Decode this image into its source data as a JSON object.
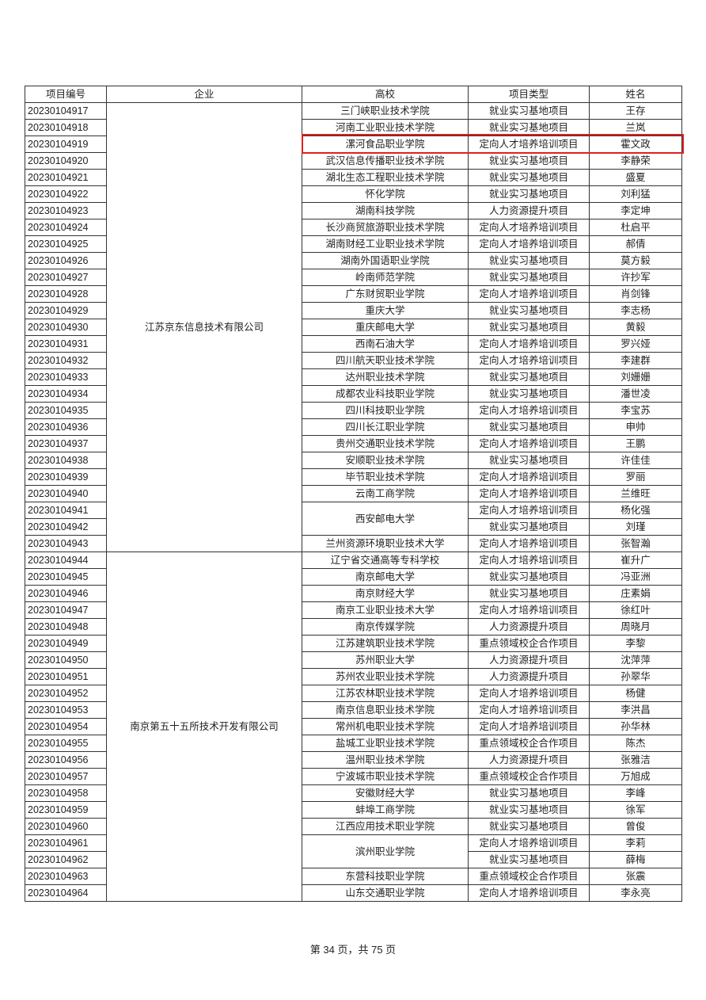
{
  "header": {
    "id": "项目编号",
    "company": "企业",
    "school": "高校",
    "type": "项目类型",
    "name": "姓名"
  },
  "highlighted_id": "20230104919",
  "highlight_color": "#e02020",
  "companies": [
    {
      "name": "江苏京东信息技术有限公司",
      "schools": [
        {
          "name": "三门峡职业技术学院",
          "entries": [
            {
              "id": "20230104917",
              "type": "就业实习基地项目",
              "name": "王存"
            }
          ]
        },
        {
          "name": "河南工业职业技术学院",
          "entries": [
            {
              "id": "20230104918",
              "type": "就业实习基地项目",
              "name": "兰岚"
            }
          ]
        },
        {
          "name": "漯河食品职业学院",
          "entries": [
            {
              "id": "20230104919",
              "type": "定向人才培养培训项目",
              "name": "霍文政"
            }
          ]
        },
        {
          "name": "武汉信息传播职业技术学院",
          "entries": [
            {
              "id": "20230104920",
              "type": "就业实习基地项目",
              "name": "李静荣"
            }
          ]
        },
        {
          "name": "湖北生态工程职业技术学院",
          "entries": [
            {
              "id": "20230104921",
              "type": "就业实习基地项目",
              "name": "盛夏"
            }
          ]
        },
        {
          "name": "怀化学院",
          "entries": [
            {
              "id": "20230104922",
              "type": "就业实习基地项目",
              "name": "刘利猛"
            }
          ]
        },
        {
          "name": "湖南科技学院",
          "entries": [
            {
              "id": "20230104923",
              "type": "人力资源提升项目",
              "name": "李定坤"
            }
          ]
        },
        {
          "name": "长沙商贸旅游职业技术学院",
          "entries": [
            {
              "id": "20230104924",
              "type": "定向人才培养培训项目",
              "name": "杜启平"
            }
          ]
        },
        {
          "name": "湖南财经工业职业技术学院",
          "entries": [
            {
              "id": "20230104925",
              "type": "定向人才培养培训项目",
              "name": "郝倩"
            }
          ]
        },
        {
          "name": "湖南外国语职业学院",
          "entries": [
            {
              "id": "20230104926",
              "type": "就业实习基地项目",
              "name": "莫方毅"
            }
          ]
        },
        {
          "name": "岭南师范学院",
          "entries": [
            {
              "id": "20230104927",
              "type": "就业实习基地项目",
              "name": "许抄军"
            }
          ]
        },
        {
          "name": "广东财贸职业学院",
          "entries": [
            {
              "id": "20230104928",
              "type": "定向人才培养培训项目",
              "name": "肖剑锋"
            }
          ]
        },
        {
          "name": "重庆大学",
          "entries": [
            {
              "id": "20230104929",
              "type": "就业实习基地项目",
              "name": "李志杨"
            }
          ]
        },
        {
          "name": "重庆邮电大学",
          "entries": [
            {
              "id": "20230104930",
              "type": "就业实习基地项目",
              "name": "黄毅"
            }
          ]
        },
        {
          "name": "西南石油大学",
          "entries": [
            {
              "id": "20230104931",
              "type": "定向人才培养培训项目",
              "name": "罗兴娅"
            }
          ]
        },
        {
          "name": "四川航天职业技术学院",
          "entries": [
            {
              "id": "20230104932",
              "type": "定向人才培养培训项目",
              "name": "李建群"
            }
          ]
        },
        {
          "name": "达州职业技术学院",
          "entries": [
            {
              "id": "20230104933",
              "type": "就业实习基地项目",
              "name": "刘姗姗"
            }
          ]
        },
        {
          "name": "成都农业科技职业学院",
          "entries": [
            {
              "id": "20230104934",
              "type": "就业实习基地项目",
              "name": "潘世凌"
            }
          ]
        },
        {
          "name": "四川科技职业学院",
          "entries": [
            {
              "id": "20230104935",
              "type": "定向人才培养培训项目",
              "name": "李宝苏"
            }
          ]
        },
        {
          "name": "四川长江职业学院",
          "entries": [
            {
              "id": "20230104936",
              "type": "就业实习基地项目",
              "name": "申帅"
            }
          ]
        },
        {
          "name": "贵州交通职业技术学院",
          "entries": [
            {
              "id": "20230104937",
              "type": "定向人才培养培训项目",
              "name": "王鹏"
            }
          ]
        },
        {
          "name": "安顺职业技术学院",
          "entries": [
            {
              "id": "20230104938",
              "type": "就业实习基地项目",
              "name": "许佳佳"
            }
          ]
        },
        {
          "name": "毕节职业技术学院",
          "entries": [
            {
              "id": "20230104939",
              "type": "定向人才培养培训项目",
              "name": "罗丽"
            }
          ]
        },
        {
          "name": "云南工商学院",
          "entries": [
            {
              "id": "20230104940",
              "type": "定向人才培养培训项目",
              "name": "兰维旺"
            }
          ]
        },
        {
          "name": "西安邮电大学",
          "entries": [
            {
              "id": "20230104941",
              "type": "定向人才培养培训项目",
              "name": "杨化强"
            },
            {
              "id": "20230104942",
              "type": "就业实习基地项目",
              "name": "刘瑾"
            }
          ]
        },
        {
          "name": "兰州资源环境职业技术大学",
          "entries": [
            {
              "id": "20230104943",
              "type": "定向人才培养培训项目",
              "name": "张智瀚"
            }
          ]
        }
      ]
    },
    {
      "name": "南京第五十五所技术开发有限公司",
      "schools": [
        {
          "name": "辽宁省交通高等专科学校",
          "entries": [
            {
              "id": "20230104944",
              "type": "定向人才培养培训项目",
              "name": "崔升广"
            }
          ]
        },
        {
          "name": "南京邮电大学",
          "entries": [
            {
              "id": "20230104945",
              "type": "就业实习基地项目",
              "name": "冯亚洲"
            }
          ]
        },
        {
          "name": "南京财经大学",
          "entries": [
            {
              "id": "20230104946",
              "type": "就业实习基地项目",
              "name": "庄素娟"
            }
          ]
        },
        {
          "name": "南京工业职业技术大学",
          "entries": [
            {
              "id": "20230104947",
              "type": "定向人才培养培训项目",
              "name": "徐红叶"
            }
          ]
        },
        {
          "name": "南京传媒学院",
          "entries": [
            {
              "id": "20230104948",
              "type": "人力资源提升项目",
              "name": "周晓月"
            }
          ]
        },
        {
          "name": "江苏建筑职业技术学院",
          "entries": [
            {
              "id": "20230104949",
              "type": "重点领域校企合作项目",
              "name": "李黎"
            }
          ]
        },
        {
          "name": "苏州职业大学",
          "entries": [
            {
              "id": "20230104950",
              "type": "人力资源提升项目",
              "name": "沈萍萍"
            }
          ]
        },
        {
          "name": "苏州农业职业技术学院",
          "entries": [
            {
              "id": "20230104951",
              "type": "人力资源提升项目",
              "name": "孙翠华"
            }
          ]
        },
        {
          "name": "江苏农林职业技术学院",
          "entries": [
            {
              "id": "20230104952",
              "type": "定向人才培养培训项目",
              "name": "杨健"
            }
          ]
        },
        {
          "name": "南京信息职业技术学院",
          "entries": [
            {
              "id": "20230104953",
              "type": "定向人才培养培训项目",
              "name": "李洪昌"
            }
          ]
        },
        {
          "name": "常州机电职业技术学院",
          "entries": [
            {
              "id": "20230104954",
              "type": "定向人才培养培训项目",
              "name": "孙华林"
            }
          ]
        },
        {
          "name": "盐城工业职业技术学院",
          "entries": [
            {
              "id": "20230104955",
              "type": "重点领域校企合作项目",
              "name": "陈杰"
            }
          ]
        },
        {
          "name": "温州职业技术学院",
          "entries": [
            {
              "id": "20230104956",
              "type": "人力资源提升项目",
              "name": "张雅洁"
            }
          ]
        },
        {
          "name": "宁波城市职业技术学院",
          "entries": [
            {
              "id": "20230104957",
              "type": "重点领域校企合作项目",
              "name": "万旭成"
            }
          ]
        },
        {
          "name": "安徽财经大学",
          "entries": [
            {
              "id": "20230104958",
              "type": "就业实习基地项目",
              "name": "李峰"
            }
          ]
        },
        {
          "name": "蚌埠工商学院",
          "entries": [
            {
              "id": "20230104959",
              "type": "就业实习基地项目",
              "name": "徐军"
            }
          ]
        },
        {
          "name": "江西应用技术职业学院",
          "entries": [
            {
              "id": "20230104960",
              "type": "就业实习基地项目",
              "name": "曾俊"
            }
          ]
        },
        {
          "name": "滨州职业学院",
          "entries": [
            {
              "id": "20230104961",
              "type": "定向人才培养培训项目",
              "name": "李莉"
            },
            {
              "id": "20230104962",
              "type": "就业实习基地项目",
              "name": "薛梅"
            }
          ]
        },
        {
          "name": "东营科技职业学院",
          "entries": [
            {
              "id": "20230104963",
              "type": "重点领域校企合作项目",
              "name": "张震"
            }
          ]
        },
        {
          "name": "山东交通职业学院",
          "entries": [
            {
              "id": "20230104964",
              "type": "定向人才培养培训项目",
              "name": "李永亮"
            }
          ]
        }
      ]
    }
  ],
  "footer": {
    "page_text": "第 34 页，共 75 页"
  }
}
